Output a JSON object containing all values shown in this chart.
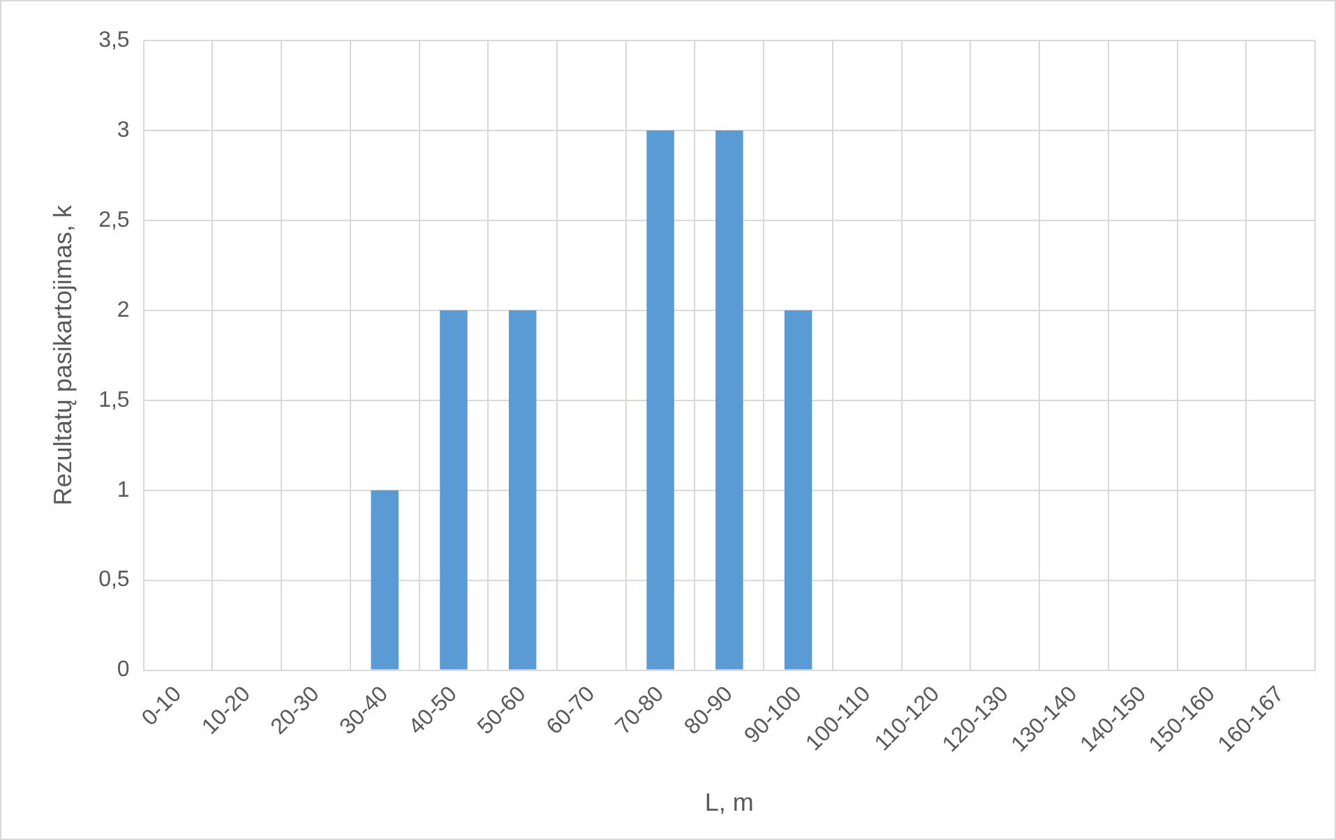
{
  "chart_data": {
    "type": "bar",
    "xlabel": "L, m",
    "ylabel": "Rezultatų pasikartojimas, k",
    "categories": [
      "0-10",
      "10-20",
      "20-30",
      "30-40",
      "40-50",
      "50-60",
      "60-70",
      "70-80",
      "80-90",
      "90-100",
      "100-110",
      "110-120",
      "120-130",
      "130-140",
      "140-150",
      "150-160",
      "160-167"
    ],
    "values": [
      0,
      0,
      0,
      1,
      2,
      2,
      0,
      3,
      3,
      2,
      0,
      0,
      0,
      0,
      0,
      0,
      0
    ],
    "color": "#5b9bd5",
    "ylim": [
      0,
      3.5
    ],
    "yticks": [
      0,
      {
        "value": 0.5,
        "label": "0,5"
      },
      1,
      {
        "value": 1.5,
        "label": "1,5"
      },
      2,
      {
        "value": 2.5,
        "label": "2,5"
      },
      3,
      {
        "value": 3.5,
        "label": "3,5"
      }
    ],
    "grid": true
  }
}
